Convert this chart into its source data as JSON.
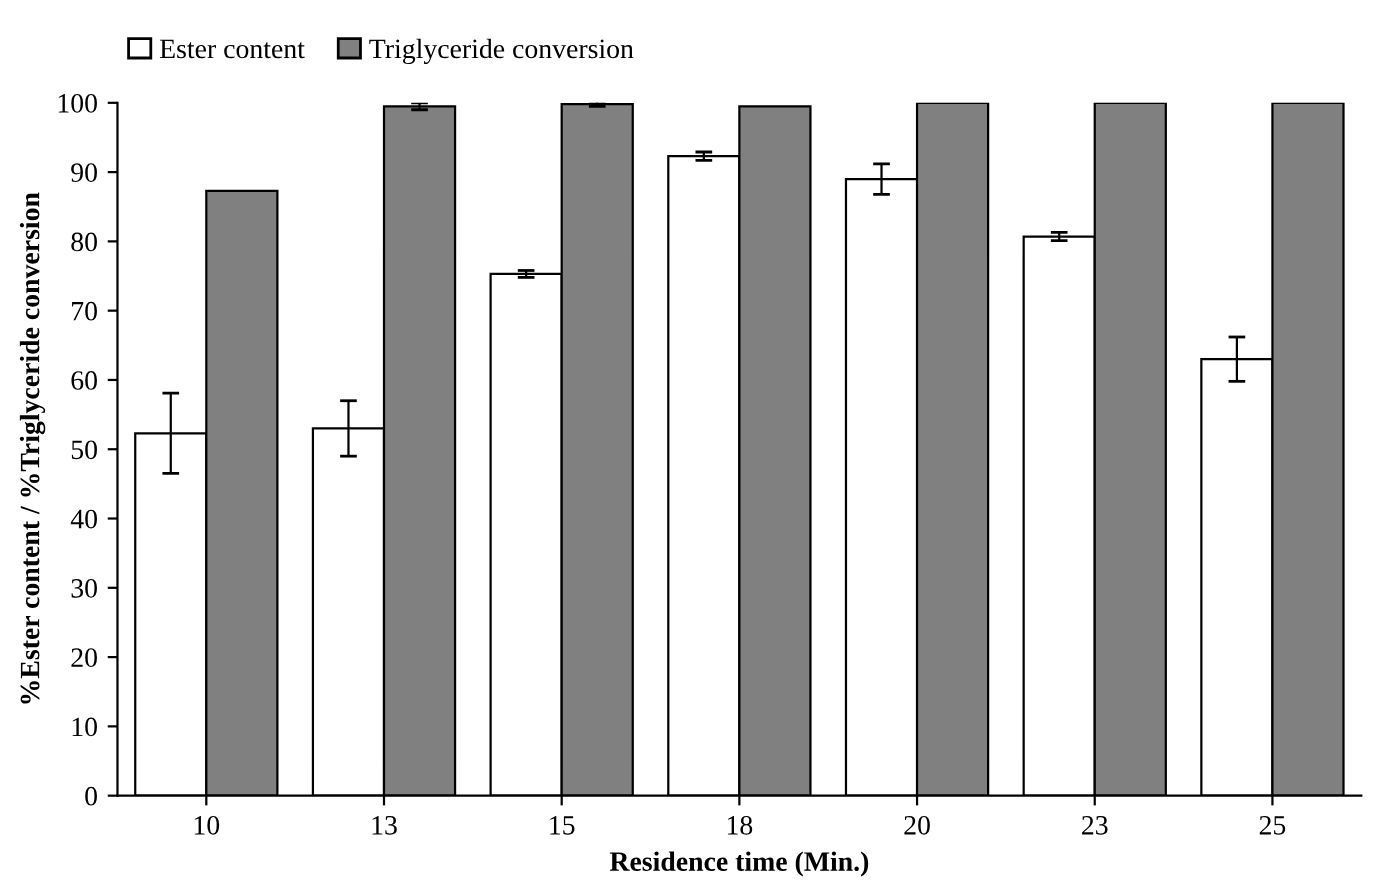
{
  "chart_data": {
    "type": "bar",
    "xlabel": "Residence time (Min.)",
    "ylabel": "%Ester content / %Triglyceride conversion",
    "categories": [
      "10",
      "13",
      "15",
      "18",
      "20",
      "23",
      "25"
    ],
    "series": [
      {
        "name": "Ester content",
        "color": "#ffffff",
        "values": [
          52.3,
          53,
          75.3,
          92.3,
          89,
          80.7,
          63
        ],
        "errors": [
          5.8,
          4,
          0.5,
          0.6,
          2.2,
          0.6,
          3.2
        ]
      },
      {
        "name": "Triglyceride conversion",
        "color": "#808080",
        "values": [
          87.3,
          99.5,
          99.8,
          99.5,
          100,
          100,
          100
        ],
        "errors": [
          null,
          0.5,
          0.3,
          null,
          null,
          null,
          null
        ]
      }
    ],
    "ylim": [
      0,
      100
    ],
    "yticks": [
      0,
      10,
      20,
      30,
      40,
      50,
      60,
      70,
      80,
      90,
      100
    ],
    "grid": false,
    "legend": "top left"
  }
}
